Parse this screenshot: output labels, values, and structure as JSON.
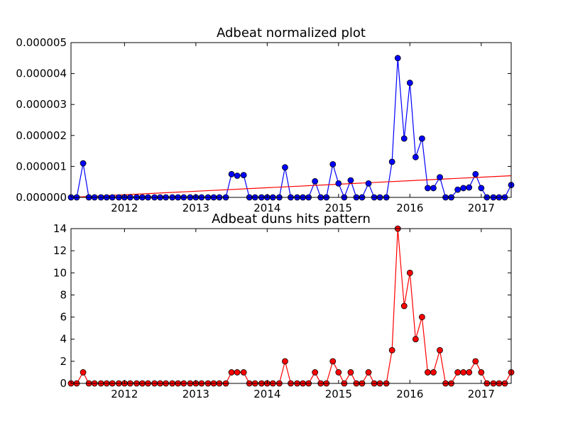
{
  "chart_data": [
    {
      "type": "line",
      "title": "Adbeat normalized plot",
      "xlabel": "",
      "ylabel": "",
      "xlim": [
        2011.25,
        2017.42
      ],
      "ylim": [
        0,
        5e-06
      ],
      "x_tick_labels": [
        "2012",
        "2013",
        "2014",
        "2015",
        "2016",
        "2017"
      ],
      "y_tick_labels": [
        "0.000000",
        "0.000001",
        "0.000002",
        "0.000003",
        "0.000004",
        "0.000005"
      ],
      "series": [
        {
          "color": "#0000ff",
          "marker": "circle",
          "x": [
            2011.25,
            2011.33,
            2011.42,
            2011.5,
            2011.58,
            2011.67,
            2011.75,
            2011.83,
            2011.92,
            2012.0,
            2012.08,
            2012.17,
            2012.25,
            2012.33,
            2012.42,
            2012.5,
            2012.58,
            2012.67,
            2012.75,
            2012.83,
            2012.92,
            2013.0,
            2013.08,
            2013.17,
            2013.25,
            2013.33,
            2013.42,
            2013.5,
            2013.58,
            2013.67,
            2013.75,
            2013.83,
            2013.92,
            2014.0,
            2014.08,
            2014.17,
            2014.25,
            2014.33,
            2014.42,
            2014.5,
            2014.58,
            2014.67,
            2014.75,
            2014.83,
            2014.92,
            2015.0,
            2015.08,
            2015.17,
            2015.25,
            2015.33,
            2015.42,
            2015.5,
            2015.58,
            2015.67,
            2015.75,
            2015.83,
            2015.92,
            2016.0,
            2016.08,
            2016.17,
            2016.25,
            2016.33,
            2016.42,
            2016.5,
            2016.58,
            2016.67,
            2016.75,
            2016.83,
            2016.92,
            2017.0,
            2017.08,
            2017.17,
            2017.25,
            2017.33,
            2017.42
          ],
          "values": [
            0,
            0,
            1.1e-06,
            0,
            0,
            0,
            0,
            0,
            0,
            0,
            0,
            0,
            0,
            0,
            0,
            0,
            0,
            0,
            0,
            0,
            0,
            0,
            0,
            0,
            0,
            0,
            0,
            7.5e-07,
            7e-07,
            7.2e-07,
            0,
            0,
            0,
            0,
            0,
            0,
            9.7e-07,
            0,
            0,
            0,
            0,
            5.2e-07,
            0,
            0,
            1.07e-06,
            4.5e-07,
            0,
            5.5e-07,
            0,
            0,
            4.5e-07,
            0,
            0,
            0,
            1.15e-06,
            4.5e-06,
            1.9e-06,
            3.7e-06,
            1.3e-06,
            1.9e-06,
            3e-07,
            3e-07,
            6.5e-07,
            0,
            0,
            2.5e-07,
            3e-07,
            3.2e-07,
            7.5e-07,
            3e-07,
            0,
            0,
            0,
            0,
            4e-07
          ]
        },
        {
          "color": "#ff0000",
          "marker": "none",
          "x": [
            2011.25,
            2017.42
          ],
          "values": [
            0,
            7e-07
          ]
        }
      ]
    },
    {
      "type": "line",
      "title": "Adbeat duns hits pattern",
      "xlabel": "",
      "ylabel": "",
      "xlim": [
        2011.25,
        2017.42
      ],
      "ylim": [
        0,
        14
      ],
      "x_tick_labels": [
        "2012",
        "2013",
        "2014",
        "2015",
        "2016",
        "2017"
      ],
      "y_tick_labels": [
        "0",
        "2",
        "4",
        "6",
        "8",
        "10",
        "12",
        "14"
      ],
      "series": [
        {
          "color": "#ff0000",
          "marker": "circle",
          "x": [
            2011.25,
            2011.33,
            2011.42,
            2011.5,
            2011.58,
            2011.67,
            2011.75,
            2011.83,
            2011.92,
            2012.0,
            2012.08,
            2012.17,
            2012.25,
            2012.33,
            2012.42,
            2012.5,
            2012.58,
            2012.67,
            2012.75,
            2012.83,
            2012.92,
            2013.0,
            2013.08,
            2013.17,
            2013.25,
            2013.33,
            2013.42,
            2013.5,
            2013.58,
            2013.67,
            2013.75,
            2013.83,
            2013.92,
            2014.0,
            2014.08,
            2014.17,
            2014.25,
            2014.33,
            2014.42,
            2014.5,
            2014.58,
            2014.67,
            2014.75,
            2014.83,
            2014.92,
            2015.0,
            2015.08,
            2015.17,
            2015.25,
            2015.33,
            2015.42,
            2015.5,
            2015.58,
            2015.67,
            2015.75,
            2015.83,
            2015.92,
            2016.0,
            2016.08,
            2016.17,
            2016.25,
            2016.33,
            2016.42,
            2016.5,
            2016.58,
            2016.67,
            2016.75,
            2016.83,
            2016.92,
            2017.0,
            2017.08,
            2017.17,
            2017.25,
            2017.33,
            2017.42
          ],
          "values": [
            0,
            0,
            1,
            0,
            0,
            0,
            0,
            0,
            0,
            0,
            0,
            0,
            0,
            0,
            0,
            0,
            0,
            0,
            0,
            0,
            0,
            0,
            0,
            0,
            0,
            0,
            0,
            1,
            1,
            1,
            0,
            0,
            0,
            0,
            0,
            0,
            2,
            0,
            0,
            0,
            0,
            1,
            0,
            0,
            2,
            1,
            0,
            1,
            0,
            0,
            1,
            0,
            0,
            0,
            3,
            14,
            7,
            10,
            4,
            6,
            1,
            1,
            3,
            0,
            0,
            1,
            1,
            1,
            2,
            1,
            0,
            0,
            0,
            0,
            1
          ]
        }
      ]
    }
  ]
}
